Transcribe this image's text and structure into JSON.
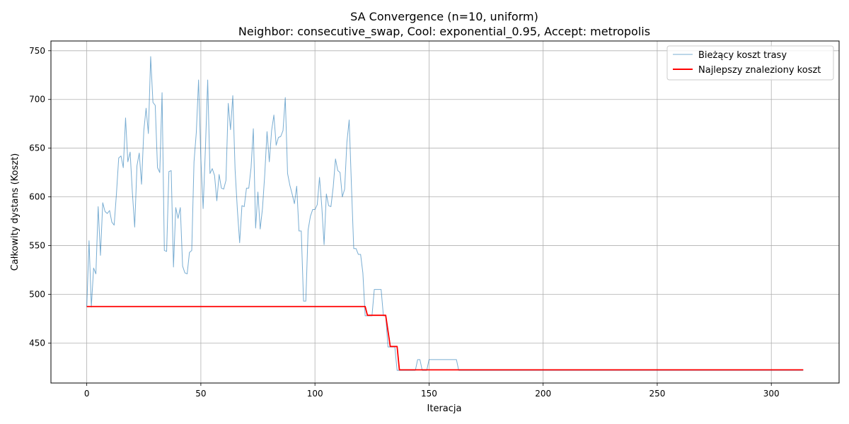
{
  "chart_data": {
    "type": "line",
    "title": "SA Convergence (n=10, uniform)",
    "subtitle": "Neighbor: consecutive_swap, Cool: exponential_0.95, Accept: metropolis",
    "xlabel": "Iteracja",
    "ylabel": "Całkowity dystans (Koszt)",
    "xlim": [
      -15.7,
      329.7
    ],
    "ylim": [
      409,
      760
    ],
    "xticks": [
      0,
      50,
      100,
      150,
      200,
      250,
      300
    ],
    "yticks": [
      450,
      500,
      550,
      600,
      650,
      700,
      750
    ],
    "grid": true,
    "legend_position": "top-right",
    "series": [
      {
        "name": "Bieżący koszt trasy",
        "color": "#1f77b4",
        "x": [
          0,
          1,
          2,
          3,
          4,
          5,
          6,
          7,
          8,
          9,
          10,
          11,
          12,
          13,
          14,
          15,
          16,
          17,
          18,
          19,
          20,
          21,
          22,
          23,
          24,
          25,
          26,
          27,
          28,
          29,
          30,
          31,
          32,
          33,
          34,
          35,
          36,
          37,
          38,
          39,
          40,
          41,
          42,
          43,
          44,
          45,
          46,
          47,
          48,
          49,
          50,
          51,
          52,
          53,
          54,
          55,
          56,
          57,
          58,
          59,
          60,
          61,
          62,
          63,
          64,
          65,
          66,
          67,
          68,
          69,
          70,
          71,
          72,
          73,
          74,
          75,
          76,
          77,
          78,
          79,
          80,
          81,
          82,
          83,
          84,
          85,
          86,
          87,
          88,
          89,
          90,
          91,
          92,
          93,
          94,
          95,
          96,
          97,
          98,
          99,
          100,
          101,
          102,
          103,
          104,
          105,
          106,
          107,
          108,
          109,
          110,
          111,
          112,
          113,
          114,
          115,
          116,
          117,
          118,
          119,
          120,
          121,
          122,
          123,
          124,
          125,
          126,
          127,
          128,
          129,
          130,
          131,
          132,
          133,
          134,
          135,
          136,
          137,
          138,
          139,
          140,
          141,
          142,
          143,
          144,
          145,
          146,
          147,
          148,
          149,
          150,
          151,
          152,
          153,
          154,
          155,
          156,
          157,
          158,
          159,
          160,
          161,
          162,
          163,
          164,
          314
        ],
        "values": [
          487,
          555,
          487,
          527,
          521,
          590,
          540,
          594,
          585,
          583,
          586,
          574,
          571,
          603,
          640,
          642,
          630,
          681,
          636,
          646,
          604,
          569,
          632,
          645,
          613,
          668,
          691,
          665,
          744,
          697,
          694,
          630,
          625,
          707,
          545,
          544,
          626,
          627,
          528,
          589,
          578,
          589,
          529,
          522,
          521,
          543,
          545,
          636,
          666,
          720,
          639,
          588,
          650,
          720,
          624,
          629,
          622,
          596,
          623,
          609,
          608,
          617,
          696,
          669,
          704,
          628,
          587,
          553,
          591,
          590,
          609,
          609,
          630,
          670,
          568,
          605,
          567,
          588,
          623,
          667,
          636,
          668,
          684,
          653,
          661,
          662,
          668,
          702,
          624,
          612,
          603,
          593,
          611,
          565,
          565,
          493,
          493,
          566,
          580,
          587,
          587,
          592,
          620,
          590,
          551,
          603,
          591,
          590,
          610,
          639,
          627,
          625,
          600,
          608,
          656,
          679,
          611,
          547,
          547,
          541,
          541,
          522,
          478,
          478,
          478,
          478,
          505,
          505,
          505,
          505,
          478,
          478,
          446,
          446,
          446,
          446,
          422,
          422,
          422,
          422,
          422,
          422,
          422,
          422,
          422,
          433,
          433,
          422,
          422,
          422,
          433,
          433,
          433,
          433,
          433,
          433,
          433,
          433,
          433,
          433,
          433,
          433,
          433,
          422,
          422,
          422
        ]
      },
      {
        "name": "Najlepszy znaleziony koszt",
        "color": "#ff0000",
        "x": [
          0,
          122,
          123,
          131,
          133,
          136,
          137,
          314
        ],
        "values": [
          487.5,
          487.5,
          478.5,
          478.5,
          446.5,
          446.5,
          422.5,
          422.5
        ]
      }
    ]
  }
}
